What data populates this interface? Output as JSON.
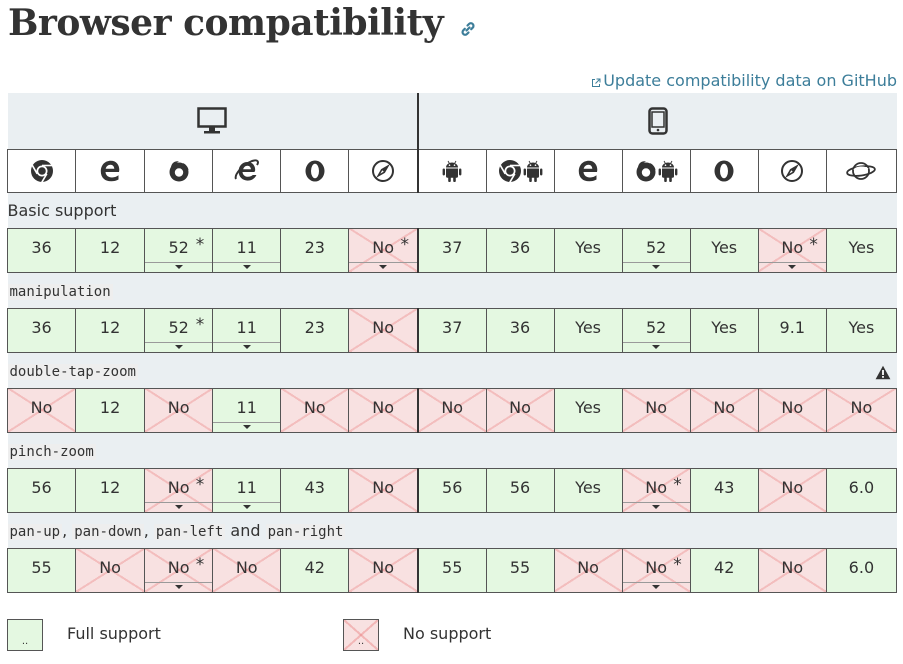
{
  "page": {
    "title": "Browser compatibility",
    "github_link": "Update compatibility data on GitHub"
  },
  "platforms": [
    {
      "name": "desktop-icon"
    },
    {
      "name": "mobile-icon"
    }
  ],
  "browsers": [
    {
      "icon": "chrome-icon"
    },
    {
      "icon": "edge-icon"
    },
    {
      "icon": "firefox-icon"
    },
    {
      "icon": "internet-explorer-icon"
    },
    {
      "icon": "opera-icon"
    },
    {
      "icon": "safari-icon"
    },
    {
      "icon": "android-webview-icon"
    },
    {
      "icon": "chrome-android-icon"
    },
    {
      "icon": "edge-mobile-icon"
    },
    {
      "icon": "firefox-android-icon"
    },
    {
      "icon": "opera-android-icon"
    },
    {
      "icon": "safari-ios-icon"
    },
    {
      "icon": "samsung-internet-icon"
    }
  ],
  "features": [
    {
      "label": "Basic support",
      "code": false,
      "cells": [
        {
          "v": "36",
          "s": "yes"
        },
        {
          "v": "12",
          "s": "yes"
        },
        {
          "v": "52",
          "s": "yes",
          "star": "*",
          "toggle": true
        },
        {
          "v": "11",
          "s": "yes",
          "toggle": true
        },
        {
          "v": "23",
          "s": "yes"
        },
        {
          "v": "No",
          "s": "no",
          "star": "*",
          "toggle": true
        },
        {
          "v": "37",
          "s": "yes"
        },
        {
          "v": "36",
          "s": "yes"
        },
        {
          "v": "Yes",
          "s": "yes"
        },
        {
          "v": "52",
          "s": "yes",
          "toggle": true
        },
        {
          "v": "Yes",
          "s": "yes"
        },
        {
          "v": "No",
          "s": "no",
          "star": "*",
          "toggle": true
        },
        {
          "v": "Yes",
          "s": "yes"
        }
      ]
    },
    {
      "label": "manipulation",
      "code": true,
      "cells": [
        {
          "v": "36",
          "s": "yes"
        },
        {
          "v": "12",
          "s": "yes"
        },
        {
          "v": "52",
          "s": "yes",
          "star": "*",
          "toggle": true
        },
        {
          "v": "11",
          "s": "yes",
          "toggle": true
        },
        {
          "v": "23",
          "s": "yes"
        },
        {
          "v": "No",
          "s": "no"
        },
        {
          "v": "37",
          "s": "yes"
        },
        {
          "v": "36",
          "s": "yes"
        },
        {
          "v": "Yes",
          "s": "yes"
        },
        {
          "v": "52",
          "s": "yes",
          "toggle": true
        },
        {
          "v": "Yes",
          "s": "yes"
        },
        {
          "v": "9.1",
          "s": "yes"
        },
        {
          "v": "Yes",
          "s": "yes"
        }
      ]
    },
    {
      "label": "double-tap-zoom",
      "code": true,
      "warning": true,
      "cells": [
        {
          "v": "No",
          "s": "no"
        },
        {
          "v": "12",
          "s": "yes"
        },
        {
          "v": "No",
          "s": "no"
        },
        {
          "v": "11",
          "s": "yes",
          "toggle": true
        },
        {
          "v": "No",
          "s": "no"
        },
        {
          "v": "No",
          "s": "no"
        },
        {
          "v": "No",
          "s": "no"
        },
        {
          "v": "No",
          "s": "no"
        },
        {
          "v": "Yes",
          "s": "yes"
        },
        {
          "v": "No",
          "s": "no"
        },
        {
          "v": "No",
          "s": "no"
        },
        {
          "v": "No",
          "s": "no"
        },
        {
          "v": "No",
          "s": "no"
        }
      ]
    },
    {
      "label": "pinch-zoom",
      "code": true,
      "cells": [
        {
          "v": "56",
          "s": "yes"
        },
        {
          "v": "12",
          "s": "yes"
        },
        {
          "v": "No",
          "s": "no",
          "star": "*",
          "toggle": true
        },
        {
          "v": "11",
          "s": "yes",
          "toggle": true
        },
        {
          "v": "43",
          "s": "yes"
        },
        {
          "v": "No",
          "s": "no"
        },
        {
          "v": "56",
          "s": "yes"
        },
        {
          "v": "56",
          "s": "yes"
        },
        {
          "v": "Yes",
          "s": "yes"
        },
        {
          "v": "No",
          "s": "no",
          "star": "*",
          "toggle": true
        },
        {
          "v": "43",
          "s": "yes"
        },
        {
          "v": "No",
          "s": "no"
        },
        {
          "v": "6.0",
          "s": "yes"
        }
      ]
    },
    {
      "label_parts": [
        {
          "t": "pan-up",
          "code": true
        },
        {
          "t": ", ",
          "code": false
        },
        {
          "t": "pan-down",
          "code": true
        },
        {
          "t": ", ",
          "code": false
        },
        {
          "t": "pan-left",
          "code": true
        },
        {
          "t": " and ",
          "code": false
        },
        {
          "t": "pan-right",
          "code": true
        }
      ],
      "cells": [
        {
          "v": "55",
          "s": "yes"
        },
        {
          "v": "No",
          "s": "no"
        },
        {
          "v": "No",
          "s": "no",
          "star": "*",
          "toggle": true
        },
        {
          "v": "No",
          "s": "no"
        },
        {
          "v": "42",
          "s": "yes"
        },
        {
          "v": "No",
          "s": "no"
        },
        {
          "v": "55",
          "s": "yes"
        },
        {
          "v": "55",
          "s": "yes"
        },
        {
          "v": "No",
          "s": "no"
        },
        {
          "v": "No",
          "s": "no",
          "star": "*",
          "toggle": true
        },
        {
          "v": "42",
          "s": "yes"
        },
        {
          "v": "No",
          "s": "no"
        },
        {
          "v": "6.0",
          "s": "yes"
        }
      ]
    }
  ],
  "legend": [
    {
      "label": "Full support",
      "s": "yes"
    },
    {
      "label": "No support",
      "s": "no"
    }
  ],
  "colors": {
    "full_support": "#e4f8e1",
    "no_support": "#f8e1e1",
    "header_bg": "#eaeff2",
    "link": "#3d7e9a"
  }
}
